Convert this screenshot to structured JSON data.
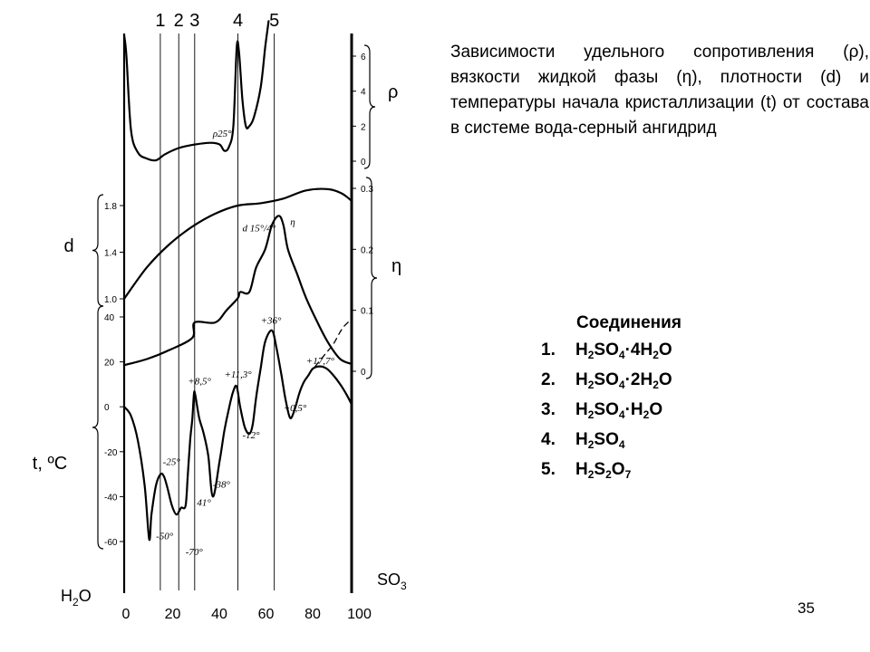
{
  "title": "Зависимости удельного сопротивления (ρ), вязкости жидкой фазы (η), плотности (d) и температуры начала кристаллизации (t) от состава в системе вода-серный ангидрид",
  "compounds": {
    "heading": "Соединения",
    "items": [
      {
        "num": "1.",
        "formula": "H2SO4·4H2O",
        "parts": [
          [
            "H",
            ""
          ],
          [
            "2",
            "sub"
          ],
          [
            "SO",
            ""
          ],
          [
            "4",
            "sub"
          ],
          [
            "·4H",
            ""
          ],
          [
            "2",
            "sub"
          ],
          [
            "O",
            ""
          ]
        ]
      },
      {
        "num": "2.",
        "formula": "H2SO4·2H2O",
        "parts": [
          [
            "H",
            ""
          ],
          [
            "2",
            "sub"
          ],
          [
            "SO",
            ""
          ],
          [
            "4",
            "sub"
          ],
          [
            "·2H",
            ""
          ],
          [
            "2",
            "sub"
          ],
          [
            "O",
            ""
          ]
        ]
      },
      {
        "num": "3.",
        "formula": "H2SO4·H2O",
        "parts": [
          [
            "H",
            ""
          ],
          [
            "2",
            "sub"
          ],
          [
            "SO",
            ""
          ],
          [
            "4",
            "sub"
          ],
          [
            "·H",
            ""
          ],
          [
            "2",
            "sub"
          ],
          [
            "O",
            ""
          ]
        ]
      },
      {
        "num": "4.",
        "formula": "H2SO4",
        "parts": [
          [
            "H",
            ""
          ],
          [
            "2",
            "sub"
          ],
          [
            "SO",
            ""
          ],
          [
            "4",
            "sub"
          ]
        ]
      },
      {
        "num": "5.",
        "formula": "H2S2O7",
        "parts": [
          [
            "H",
            ""
          ],
          [
            "2",
            "sub"
          ],
          [
            "S",
            ""
          ],
          [
            "2",
            "sub"
          ],
          [
            "O",
            ""
          ],
          [
            "7",
            "sub"
          ]
        ]
      }
    ]
  },
  "page_number": "35",
  "chart_data": {
    "type": "line",
    "x_axis": {
      "range": [
        0,
        100
      ],
      "ticks": [
        "0",
        "20",
        "40",
        "60",
        "80",
        "100"
      ],
      "left_label": "H2O",
      "right_label": "SO3"
    },
    "compound_lines": {
      "labels": [
        "1",
        "2",
        "3",
        "4",
        "5"
      ],
      "x": [
        15.9,
        24,
        31,
        50,
        66
      ]
    },
    "axes": [
      {
        "id": "rho",
        "label": "ρ",
        "side": "right",
        "range": [
          0,
          6
        ],
        "ticks": [
          "0",
          "2",
          "4",
          "6"
        ]
      },
      {
        "id": "eta",
        "label": "η",
        "side": "right",
        "range": [
          0,
          0.3
        ],
        "ticks": [
          "0",
          "0.1",
          "0.2",
          "0.3"
        ]
      },
      {
        "id": "d",
        "label": "d",
        "side": "left",
        "range": [
          1.0,
          1.8
        ],
        "ticks": [
          "1.0",
          "1.4",
          "1.8"
        ]
      },
      {
        "id": "t",
        "label": "t, ºC",
        "side": "left",
        "range": [
          -60,
          40
        ],
        "ticks": [
          "40",
          "20",
          "0",
          "-20",
          "-40",
          "-60"
        ]
      }
    ],
    "series": [
      {
        "name": "ρ25°",
        "axis": "rho",
        "points": [
          [
            0,
            7.2
          ],
          [
            1,
            6.0
          ],
          [
            3,
            1.8
          ],
          [
            6,
            0.5
          ],
          [
            10,
            0.15
          ],
          [
            14,
            0.05
          ],
          [
            18,
            0.4
          ],
          [
            24,
            0.75
          ],
          [
            31,
            0.95
          ],
          [
            38,
            1.05
          ],
          [
            42,
            0.95
          ],
          [
            44,
            0.6
          ],
          [
            46,
            0.8
          ],
          [
            48,
            2.0
          ],
          [
            49.5,
            6.5
          ],
          [
            50.5,
            6.2
          ],
          [
            52,
            3.5
          ],
          [
            53.5,
            2.0
          ],
          [
            55,
            2.0
          ],
          [
            57,
            2.5
          ],
          [
            60,
            4.2
          ],
          [
            62,
            6.5
          ],
          [
            63.5,
            8.0
          ]
        ]
      },
      {
        "name": "d 15°/4°",
        "axis": "d",
        "points": [
          [
            0,
            1.0
          ],
          [
            10,
            1.27
          ],
          [
            20,
            1.47
          ],
          [
            30,
            1.62
          ],
          [
            40,
            1.73
          ],
          [
            50,
            1.8
          ],
          [
            60,
            1.82
          ],
          [
            70,
            1.86
          ],
          [
            80,
            1.93
          ],
          [
            90,
            1.94
          ],
          [
            96,
            1.9
          ],
          [
            100,
            1.84
          ]
        ]
      },
      {
        "name": "η",
        "axis": "eta",
        "points": [
          [
            0,
            0.01
          ],
          [
            10,
            0.02
          ],
          [
            20,
            0.035
          ],
          [
            30,
            0.055
          ],
          [
            31,
            0.08
          ],
          [
            40,
            0.08
          ],
          [
            45,
            0.1
          ],
          [
            50,
            0.12
          ],
          [
            51,
            0.13
          ],
          [
            55,
            0.13
          ],
          [
            58,
            0.17
          ],
          [
            62,
            0.2
          ],
          [
            65,
            0.24
          ],
          [
            68,
            0.255
          ],
          [
            70,
            0.24
          ],
          [
            72,
            0.2
          ],
          [
            76,
            0.16
          ],
          [
            80,
            0.12
          ],
          [
            85,
            0.08
          ],
          [
            90,
            0.045
          ],
          [
            95,
            0.02
          ],
          [
            100,
            0.012
          ]
        ]
      },
      {
        "name": "t",
        "axis": "t",
        "points": [
          [
            0,
            0
          ],
          [
            3,
            -4
          ],
          [
            6,
            -15
          ],
          [
            9,
            -35
          ],
          [
            11,
            -59
          ],
          [
            12,
            -48
          ],
          [
            14,
            -35
          ],
          [
            16,
            -30
          ],
          [
            17.5,
            -31
          ],
          [
            19,
            -36
          ],
          [
            21,
            -44
          ],
          [
            23,
            -48
          ],
          [
            25,
            -45
          ],
          [
            27,
            -44
          ],
          [
            28,
            -30
          ],
          [
            29,
            -15
          ],
          [
            30,
            -5
          ],
          [
            30.7,
            6
          ],
          [
            31.3,
            5
          ],
          [
            33,
            -5
          ],
          [
            35,
            -12
          ],
          [
            37,
            -22
          ],
          [
            39,
            -40
          ],
          [
            42,
            -24
          ],
          [
            44,
            -11
          ],
          [
            46,
            -1
          ],
          [
            48,
            7
          ],
          [
            49.5,
            9
          ],
          [
            51,
            0
          ],
          [
            53,
            -9
          ],
          [
            55,
            -12
          ],
          [
            56.5,
            -8
          ],
          [
            58,
            4
          ],
          [
            60,
            17
          ],
          [
            62,
            29
          ],
          [
            65,
            34
          ],
          [
            67,
            26
          ],
          [
            69,
            15
          ],
          [
            71,
            3
          ],
          [
            73,
            -5
          ],
          [
            75,
            -1
          ],
          [
            77,
            6
          ],
          [
            79,
            11
          ],
          [
            81,
            14
          ],
          [
            83,
            17
          ],
          [
            86,
            18
          ],
          [
            89,
            17
          ],
          [
            92,
            14
          ],
          [
            95,
            10
          ],
          [
            98,
            5
          ],
          [
            100,
            1
          ]
        ]
      },
      {
        "name": "t (metastable)",
        "axis": "t",
        "style": "dashed",
        "points": [
          [
            84,
            18
          ],
          [
            88,
            23
          ],
          [
            92,
            28
          ],
          [
            96,
            35
          ],
          [
            100,
            39
          ]
        ]
      }
    ],
    "annotations": [
      {
        "text": "ρ25°",
        "x": 39,
        "axis": "rho",
        "y": 1.4
      },
      {
        "text": "d 15°/4°",
        "x": 52,
        "axis": "d",
        "y": 1.58
      },
      {
        "text": "η",
        "x": 73,
        "axis": "eta",
        "y": 0.24
      },
      {
        "text": "-25°",
        "x": 17,
        "axis": "t",
        "y": -26
      },
      {
        "text": "-50°",
        "x": 14,
        "axis": "t",
        "y": -59
      },
      {
        "text": "-70°",
        "x": 27,
        "axis": "t",
        "y": -66
      },
      {
        "text": "+8,5°",
        "x": 28,
        "axis": "t",
        "y": 10
      },
      {
        "text": "+11,3°",
        "x": 44,
        "axis": "t",
        "y": 13
      },
      {
        "text": "-38°",
        "x": 39,
        "axis": "t",
        "y": -36
      },
      {
        "text": "41°",
        "x": 32,
        "axis": "t",
        "y": -44
      },
      {
        "text": "-12°",
        "x": 52,
        "axis": "t",
        "y": -14
      },
      {
        "text": "+36°",
        "x": 60,
        "axis": "t",
        "y": 37
      },
      {
        "text": "+17,7°",
        "x": 80,
        "axis": "t",
        "y": 19
      },
      {
        "text": "+0,5°",
        "x": 70,
        "axis": "t",
        "y": -2
      }
    ]
  }
}
